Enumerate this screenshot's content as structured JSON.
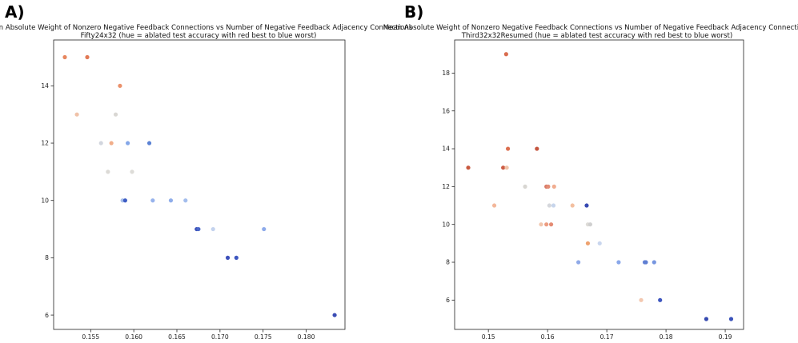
{
  "panels": [
    {
      "label": "A)"
    },
    {
      "label": "B)"
    }
  ],
  "chart_data": [
    {
      "type": "scatter",
      "title": "Mean Absolute Weight of Nonzero Negative Feedback Connections vs Number of Negative Feedback Adjacency Connections",
      "subtitle": "Fifty24x32 (hue = ablated test accuracy with red best to blue worst)",
      "xlabel": "",
      "ylabel": "",
      "xlim": [
        0.1507,
        0.1845
      ],
      "ylim": [
        5.5,
        15.6
      ],
      "xticks": [
        "0.155",
        "0.160",
        "0.165",
        "0.170",
        "0.175",
        "0.180"
      ],
      "xtick_values": [
        0.155,
        0.16,
        0.165,
        0.17,
        0.175,
        0.18
      ],
      "yticks": [
        "6",
        "8",
        "10",
        "12",
        "14"
      ],
      "ytick_values": [
        6,
        8,
        10,
        12,
        14
      ],
      "grid": false,
      "points": [
        {
          "x": 0.152,
          "y": 15,
          "color": "#e7875f"
        },
        {
          "x": 0.1546,
          "y": 15,
          "color": "#e27a56"
        },
        {
          "x": 0.1584,
          "y": 14,
          "color": "#eb916b"
        },
        {
          "x": 0.1534,
          "y": 13,
          "color": "#f0c2a8"
        },
        {
          "x": 0.1579,
          "y": 13,
          "color": "#d9d7d3"
        },
        {
          "x": 0.1562,
          "y": 12,
          "color": "#d2d6de"
        },
        {
          "x": 0.1574,
          "y": 12,
          "color": "#f1ae8a"
        },
        {
          "x": 0.1593,
          "y": 12,
          "color": "#84a7e8"
        },
        {
          "x": 0.1618,
          "y": 12,
          "color": "#5b82d4"
        },
        {
          "x": 0.157,
          "y": 11,
          "color": "#dcdad6"
        },
        {
          "x": 0.1598,
          "y": 11,
          "color": "#dddcd8"
        },
        {
          "x": 0.1587,
          "y": 10,
          "color": "#a9c0ea"
        },
        {
          "x": 0.159,
          "y": 10,
          "color": "#3d5cc4"
        },
        {
          "x": 0.1622,
          "y": 10,
          "color": "#97b3ec"
        },
        {
          "x": 0.1643,
          "y": 10,
          "color": "#8fadea"
        },
        {
          "x": 0.166,
          "y": 10,
          "color": "#a3bded"
        },
        {
          "x": 0.1673,
          "y": 9,
          "color": "#3a4fb8"
        },
        {
          "x": 0.1675,
          "y": 9,
          "color": "#4a67c8"
        },
        {
          "x": 0.1692,
          "y": 9,
          "color": "#c4d3ee"
        },
        {
          "x": 0.1751,
          "y": 9,
          "color": "#8daaea"
        },
        {
          "x": 0.1709,
          "y": 8,
          "color": "#3d50ba"
        },
        {
          "x": 0.1719,
          "y": 8,
          "color": "#3e57c0"
        },
        {
          "x": 0.1833,
          "y": 6,
          "color": "#3a4cb4"
        }
      ]
    },
    {
      "type": "scatter",
      "title": "Mean Absolute Weight of Nonzero Negative Feedback Connections vs Number of Negative Feedback Adjacency Connections",
      "subtitle": "Third32x32Resumed (hue = ablated test accuracy with red best to blue worst)",
      "xlabel": "",
      "ylabel": "",
      "xlim": [
        0.1443,
        0.1931
      ],
      "ylim": [
        4.45,
        19.75
      ],
      "xticks": [
        "0.15",
        "0.16",
        "0.17",
        "0.18",
        "0.19"
      ],
      "xtick_values": [
        0.15,
        0.16,
        0.17,
        0.18,
        0.19
      ],
      "yticks": [
        "6",
        "8",
        "10",
        "12",
        "14",
        "16",
        "18"
      ],
      "ytick_values": [
        6,
        8,
        10,
        12,
        14,
        16,
        18
      ],
      "grid": false,
      "points": [
        {
          "x": 0.153,
          "y": 19,
          "color": "#d96d4f"
        },
        {
          "x": 0.1533,
          "y": 14,
          "color": "#dc6f50"
        },
        {
          "x": 0.1582,
          "y": 14,
          "color": "#c5553f"
        },
        {
          "x": 0.1466,
          "y": 13,
          "color": "#c8593f"
        },
        {
          "x": 0.1525,
          "y": 13,
          "color": "#cc5c44"
        },
        {
          "x": 0.1531,
          "y": 13,
          "color": "#f0c3a9"
        },
        {
          "x": 0.1562,
          "y": 12,
          "color": "#d8d6d2"
        },
        {
          "x": 0.1598,
          "y": 12,
          "color": "#d97a66"
        },
        {
          "x": 0.1601,
          "y": 12,
          "color": "#e38d76"
        },
        {
          "x": 0.1611,
          "y": 12,
          "color": "#f1ad90"
        },
        {
          "x": 0.151,
          "y": 11,
          "color": "#f3b79a"
        },
        {
          "x": 0.1603,
          "y": 11,
          "color": "#d5d7dc"
        },
        {
          "x": 0.161,
          "y": 11,
          "color": "#c7d5ec"
        },
        {
          "x": 0.1642,
          "y": 11,
          "color": "#f3bf9f"
        },
        {
          "x": 0.1666,
          "y": 11,
          "color": "#3749b2"
        },
        {
          "x": 0.1589,
          "y": 10,
          "color": "#f1c6ad"
        },
        {
          "x": 0.1598,
          "y": 10,
          "color": "#ec9c80"
        },
        {
          "x": 0.1606,
          "y": 10,
          "color": "#e48b73"
        },
        {
          "x": 0.1668,
          "y": 10,
          "color": "#dedcd8"
        },
        {
          "x": 0.1672,
          "y": 10,
          "color": "#cfcfcf"
        },
        {
          "x": 0.1668,
          "y": 9,
          "color": "#eea26f"
        },
        {
          "x": 0.1688,
          "y": 9,
          "color": "#c9d6ee"
        },
        {
          "x": 0.1652,
          "y": 8,
          "color": "#90aae8"
        },
        {
          "x": 0.172,
          "y": 8,
          "color": "#8aa8ea"
        },
        {
          "x": 0.1764,
          "y": 8,
          "color": "#6a86d6"
        },
        {
          "x": 0.1766,
          "y": 8,
          "color": "#5f7fd2"
        },
        {
          "x": 0.178,
          "y": 8,
          "color": "#7796e0"
        },
        {
          "x": 0.1758,
          "y": 6,
          "color": "#f3c8b0"
        },
        {
          "x": 0.179,
          "y": 6,
          "color": "#3e56bf"
        },
        {
          "x": 0.1868,
          "y": 5,
          "color": "#3549b0"
        },
        {
          "x": 0.191,
          "y": 5,
          "color": "#3a52ba"
        }
      ]
    }
  ]
}
